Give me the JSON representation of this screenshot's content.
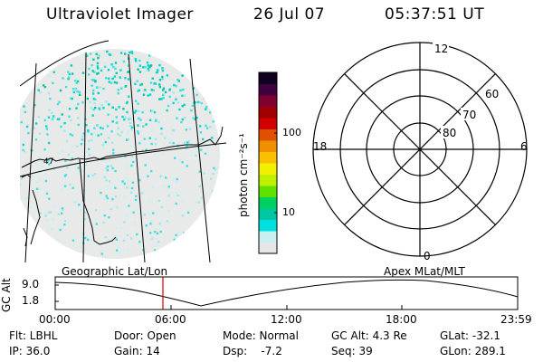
{
  "header": {
    "instrument": "Ultraviolet Imager",
    "date": "26 Jul 07",
    "time": "05:37:51 UT"
  },
  "colorbar": {
    "unit_label": "photon cm⁻²s⁻¹",
    "ticks": [
      "100",
      "10"
    ],
    "colors": [
      "#e6e6e6",
      "#c8f0f0",
      "#00e0e0",
      "#00c8a0",
      "#00d060",
      "#60e000",
      "#c0f000",
      "#f0f000",
      "#f8c000",
      "#f09000",
      "#e05000",
      "#d00000",
      "#a00000",
      "#800030",
      "#400040",
      "#100020"
    ]
  },
  "left_map": {
    "grid_label": "Geographic Lat/Lon",
    "map_label": "47"
  },
  "polar_plot": {
    "grid_label": "Apex MLat/MLT",
    "mlt_labels": {
      "top": "12",
      "left": "18",
      "right": "6",
      "bottom": "0"
    },
    "mlat_labels": [
      "60",
      "70",
      "80"
    ]
  },
  "altitude_strip": {
    "axis_label": "GC Alt",
    "y_ticks": [
      "9.0",
      "1.8"
    ],
    "x_ticks": [
      "00:00",
      "06:00",
      "12:00",
      "18:00",
      "23:59"
    ],
    "current_time_marker": "05:37:51",
    "marker_color": "#d00000"
  },
  "status": {
    "row1": {
      "flt": "Flt: LBHL",
      "door": "Door: Open",
      "mode": "Mode: Normal",
      "gc_alt": "GC Alt: 4.3 Re",
      "glat": "GLat: -32.1"
    },
    "row2": {
      "ip": "IP: 36.0",
      "gain": "Gain: 14",
      "dsp": "Dsp:    -7.2",
      "seq": "Seq: 39",
      "glon": "GLon: 289.1"
    }
  }
}
